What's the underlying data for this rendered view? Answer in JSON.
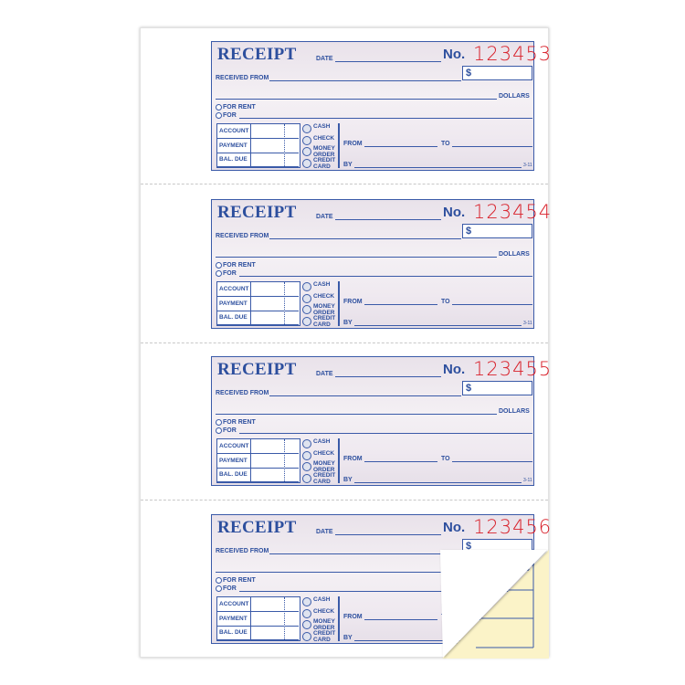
{
  "form": {
    "title": "RECEIPT",
    "date_label": "DATE",
    "no_label": "No.",
    "dollar_sign": "$",
    "received_from_label": "RECEIVED FROM",
    "dollars_label": "DOLLARS",
    "for_rent_label": "FOR RENT",
    "for_label": "FOR",
    "table_rows": [
      "ACCOUNT",
      "PAYMENT",
      "BAL. DUE"
    ],
    "payment_methods": [
      {
        "line1": "CASH",
        "line2": ""
      },
      {
        "line1": "CHECK",
        "line2": ""
      },
      {
        "line1": "MONEY",
        "line2": "ORDER"
      },
      {
        "line1": "CREDIT",
        "line2": "CARD"
      }
    ],
    "from_label": "FROM",
    "to_label": "TO",
    "by_label": "BY",
    "form_code": "3-11"
  },
  "receipts": [
    {
      "number": "123453"
    },
    {
      "number": "123454"
    },
    {
      "number": "123455"
    },
    {
      "number": "123456"
    }
  ],
  "colors": {
    "ink": "#2d4f9e",
    "number": "#d8202a",
    "carbon_copy": "#fbf3c8"
  }
}
